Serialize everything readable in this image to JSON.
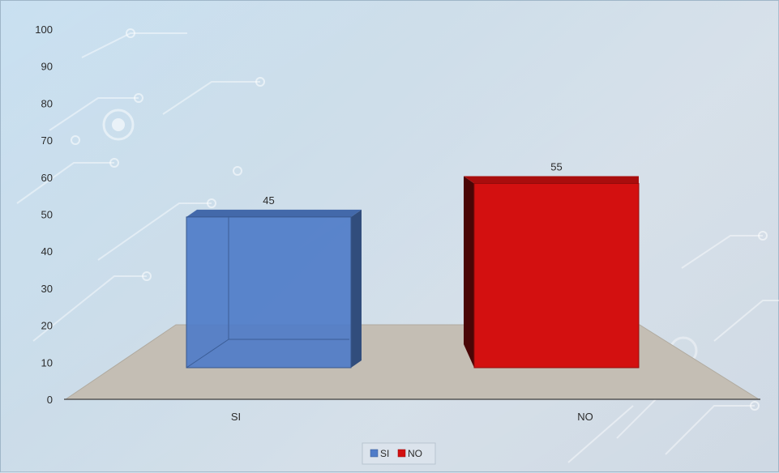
{
  "chart_data": {
    "type": "bar",
    "categories": [
      "SI",
      "NO"
    ],
    "values": [
      45,
      55
    ],
    "colors": [
      "#4f7cc8",
      "#d31010"
    ],
    "ylim": [
      0,
      100
    ],
    "yticks": [
      0,
      10,
      20,
      30,
      40,
      50,
      60,
      70,
      80,
      90,
      100
    ],
    "legend": {
      "placement": "bottom",
      "entries": [
        "SI",
        "NO"
      ]
    },
    "grid": false,
    "style": "3d-column"
  }
}
